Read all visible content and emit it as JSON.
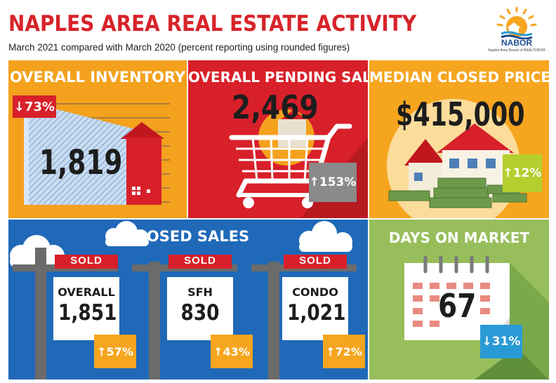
{
  "header": {
    "title": "NAPLES AREA REAL ESTATE ACTIVITY",
    "subtitle": "March 2021 compared with March 2020 (percent reporting using rounded figures)"
  },
  "logo": {
    "name": "NABOR",
    "tagline": "Naples Area Board of REALTORS®"
  },
  "inventory": {
    "title": "OVERALL INVENTORY",
    "value": "1,819",
    "change": "73%",
    "direction": "down",
    "badge_color": "#d8202a"
  },
  "pending": {
    "title": "OVERALL PENDING SALES",
    "value": "2,469",
    "change": "153%",
    "direction": "up",
    "badge_color": "#8a8a8a"
  },
  "price": {
    "title": "MEDIAN CLOSED PRICE",
    "value": "$415,000",
    "change": "12%",
    "direction": "up",
    "badge_color": "#b5cf2e"
  },
  "closed": {
    "title": "CLOSED SALES",
    "signs": [
      {
        "sold": "SOLD",
        "label": "OVERALL",
        "value": "1,851",
        "change": "57%",
        "direction": "up"
      },
      {
        "sold": "SOLD",
        "label": "SFH",
        "value": "830",
        "change": "43%",
        "direction": "up"
      },
      {
        "sold": "SOLD",
        "label": "CONDO",
        "value": "1,021",
        "change": "72%",
        "direction": "up"
      }
    ],
    "badge_color": "#f6a51f"
  },
  "days": {
    "title": "DAYS ON MARKET",
    "value": "67",
    "change": "31%",
    "direction": "down",
    "badge_color": "#2a9ad6"
  }
}
